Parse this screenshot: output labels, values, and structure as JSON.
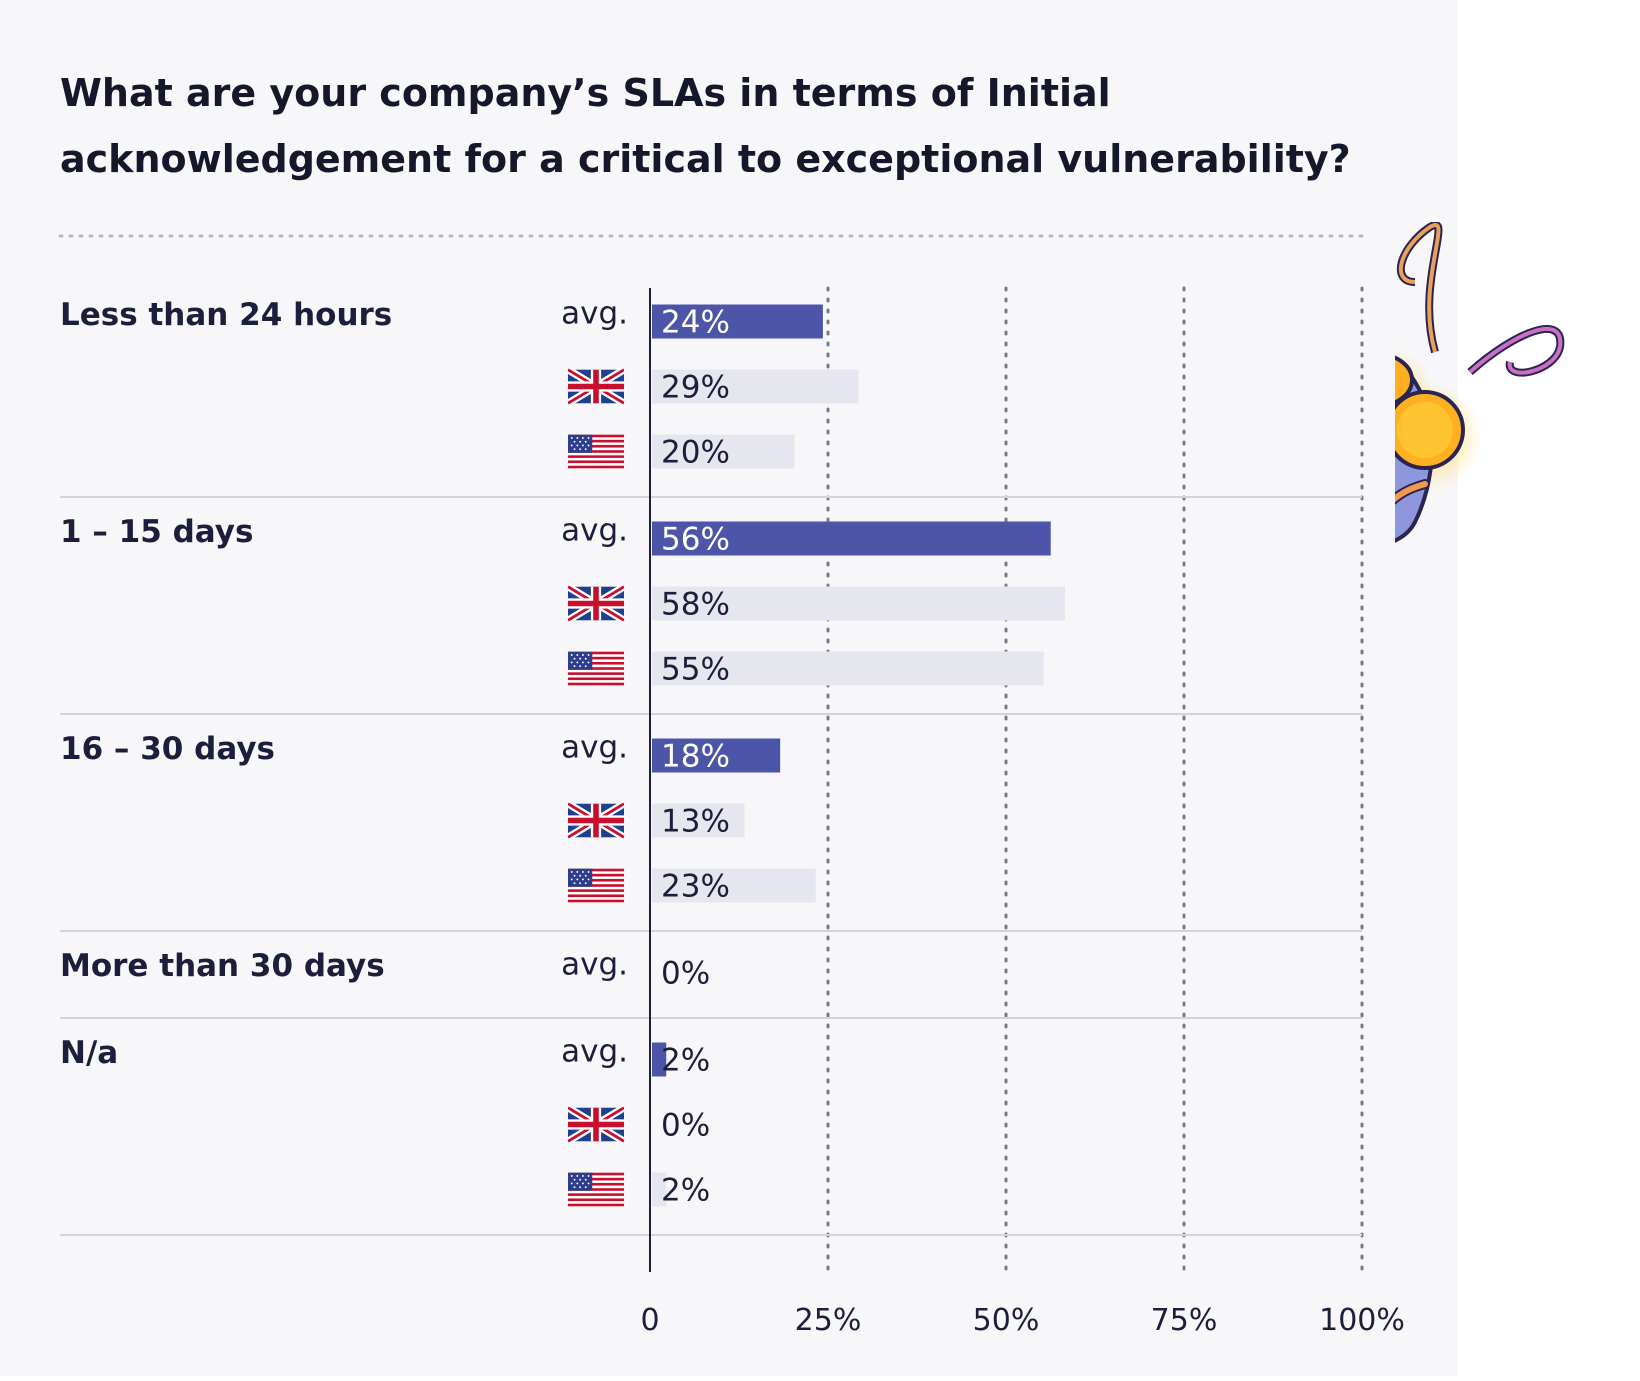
{
  "chart_data": {
    "type": "bar",
    "orientation": "horizontal",
    "title": "What are your company’s SLAs in terms of Initial acknowledgement for a critical to exceptional vulnerability?",
    "xlim": [
      0,
      100
    ],
    "x_ticks": [
      "0",
      "25%",
      "50%",
      "75%",
      "100%"
    ],
    "grid": "vertical dotted",
    "groups": [
      {
        "category": "Less than 24 hours",
        "rows": [
          {
            "label": "avg.",
            "series": "avg",
            "value": 24,
            "display": "24%"
          },
          {
            "label": "",
            "series": "uk",
            "value": 29,
            "display": "29%"
          },
          {
            "label": "",
            "series": "us",
            "value": 20,
            "display": "20%"
          }
        ]
      },
      {
        "category": "1 – 15 days",
        "rows": [
          {
            "label": "avg.",
            "series": "avg",
            "value": 56,
            "display": "56%"
          },
          {
            "label": "",
            "series": "uk",
            "value": 58,
            "display": "58%"
          },
          {
            "label": "",
            "series": "us",
            "value": 55,
            "display": "55%"
          }
        ]
      },
      {
        "category": "16 – 30 days",
        "rows": [
          {
            "label": "avg.",
            "series": "avg",
            "value": 18,
            "display": "18%"
          },
          {
            "label": "",
            "series": "uk",
            "value": 13,
            "display": "13%"
          },
          {
            "label": "",
            "series": "us",
            "value": 23,
            "display": "23%"
          }
        ]
      },
      {
        "category": "More than 30 days",
        "rows": [
          {
            "label": "avg.",
            "series": "avg",
            "value": 0,
            "display": "0%"
          }
        ]
      },
      {
        "category": "N/a",
        "rows": [
          {
            "label": "avg.",
            "series": "avg",
            "value": 2,
            "display": "2%"
          },
          {
            "label": "",
            "series": "uk",
            "value": 0,
            "display": "0%"
          },
          {
            "label": "",
            "series": "us",
            "value": 2,
            "display": "2%"
          }
        ]
      }
    ],
    "series_icons": {
      "avg": "text-label",
      "uk": "uk-flag-icon",
      "us": "us-flag-icon"
    }
  },
  "colors": {
    "avg_bar": "#4d55a8",
    "country_bar": "#e6e6ee",
    "text": "#1b1f3b",
    "separator": "#d3d3d9",
    "grid": "#7a7a86",
    "panel": "#f7f7f9"
  },
  "decor": {
    "mascot": "bee-mascot-icon"
  }
}
